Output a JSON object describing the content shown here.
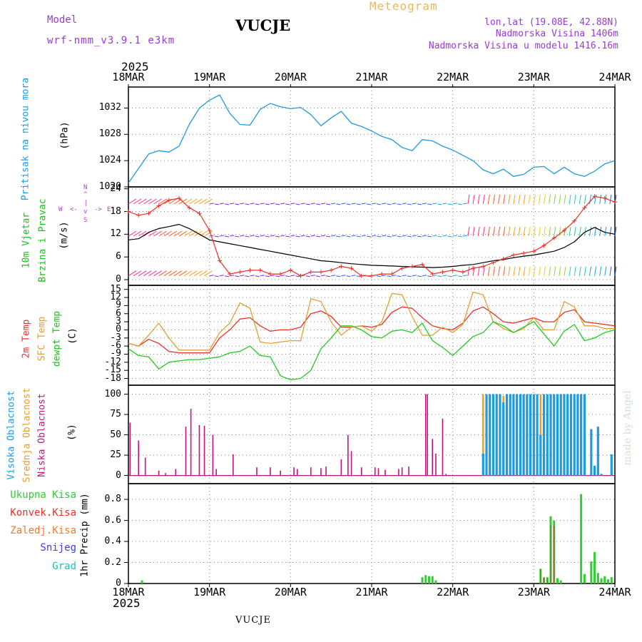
{
  "header": {
    "model_label": "Model",
    "model_name": "wrf-nmm_v3.9.1  e3km",
    "station": "VUCJE",
    "chart_name": "Meteogram",
    "coords": "lon,lat (19.08E, 42.88N)",
    "elevation": "Nadmorska Visina 1406m",
    "model_elevation": "Nadmorska Visina u modelu 1416.16m",
    "footer_station": "VUCJE",
    "credit": "made by Angel"
  },
  "colors": {
    "pressure": "#1e9be0",
    "temp2m": "#e8322a",
    "sfc_temp": "#e0a030",
    "dewpt": "#22cc22",
    "high_cloud": "#1e9be0",
    "mid_cloud": "#e0a030",
    "low_cloud": "#c0157f",
    "total_precip": "#33cc33",
    "model": "#9a3bd6",
    "title_orange": "#e8b860"
  },
  "chart_data": [
    {
      "type": "line",
      "id": "pressure",
      "title": "Pritisak na nivou mora",
      "ylabel": "(hPa)",
      "year": "2025",
      "x_ticks": [
        "18MAR",
        "19MAR",
        "20MAR",
        "21MAR",
        "22MAR",
        "23MAR",
        "24MAR"
      ],
      "ylim": [
        1020,
        1035.2
      ],
      "y_ticks": [
        1020,
        1024,
        1028,
        1032
      ],
      "y_tick_labels": [
        "1020",
        "1024",
        "1028",
        "1032"
      ],
      "x_hours": [
        0,
        3,
        6,
        9,
        12,
        15,
        18,
        21,
        24,
        27,
        30,
        33,
        36,
        39,
        42,
        45,
        48,
        51,
        54,
        57,
        60,
        63,
        66,
        69,
        72,
        75,
        78,
        81,
        84,
        87,
        90,
        93,
        96,
        99,
        102,
        105,
        108,
        111,
        114,
        117,
        120,
        123,
        126,
        129,
        132,
        135,
        138,
        141,
        144
      ],
      "values": [
        1020.6,
        1022.8,
        1025.0,
        1025.5,
        1025.3,
        1026.2,
        1029.5,
        1032.0,
        1033.2,
        1034.0,
        1031.2,
        1029.5,
        1029.4,
        1031.8,
        1032.7,
        1032.2,
        1031.9,
        1032.1,
        1031.0,
        1029.3,
        1030.5,
        1031.5,
        1029.7,
        1029.2,
        1028.5,
        1027.7,
        1027.2,
        1026.0,
        1025.5,
        1027.2,
        1027.0,
        1026.2,
        1025.6,
        1024.8,
        1024.0,
        1022.6,
        1022.0,
        1022.7,
        1021.6,
        1021.9,
        1023.0,
        1023.1,
        1022.0,
        1023.0,
        1022.0,
        1021.6,
        1022.4,
        1023.5,
        1024.0
      ]
    },
    {
      "type": "line",
      "id": "wind",
      "title_1": "10m Vjetar",
      "title_2": "Brzina i Pravac",
      "ylabel": "(m/s)",
      "compass": [
        "N",
        "^",
        "|",
        "v",
        "S",
        "W",
        "E",
        "<-",
        "->"
      ],
      "ylim": [
        -1.5,
        24.5
      ],
      "y_ticks": [
        0,
        6,
        12,
        18,
        24
      ],
      "y_tick_labels": [
        "0",
        "6",
        "12",
        "18",
        "24"
      ],
      "series": [
        {
          "name": "wind speed",
          "x_hours": [
            0,
            3,
            6,
            9,
            12,
            15,
            18,
            21,
            24,
            27,
            30,
            33,
            36,
            39,
            42,
            45,
            48,
            51,
            54,
            57,
            60,
            63,
            66,
            69,
            72,
            75,
            78,
            81,
            84,
            87,
            90,
            93,
            96,
            99,
            102,
            105,
            108,
            111,
            114,
            117,
            120,
            123,
            126,
            129,
            132,
            135,
            138,
            141,
            144
          ],
          "values": [
            10.5,
            10.8,
            12.5,
            13.5,
            14.0,
            14.6,
            13.5,
            12.0,
            10.5,
            10.0,
            9.5,
            9.0,
            8.5,
            8.0,
            7.5,
            7.0,
            6.5,
            6.0,
            5.5,
            5.0,
            4.8,
            4.5,
            4.2,
            4.0,
            3.8,
            3.7,
            3.6,
            3.5,
            3.4,
            3.3,
            3.2,
            3.3,
            3.5,
            3.8,
            4.0,
            4.5,
            5.0,
            5.3,
            5.8,
            6.2,
            6.5,
            7.0,
            7.5,
            8.5,
            10.0,
            12.5,
            13.8,
            12.5,
            12.0
          ]
        },
        {
          "name": "wind gust",
          "x_hours": [
            0,
            3,
            6,
            9,
            12,
            15,
            18,
            21,
            24,
            27,
            30,
            33,
            36,
            39,
            42,
            45,
            48,
            51,
            54,
            57,
            60,
            63,
            66,
            69,
            72,
            75,
            78,
            81,
            84,
            87,
            90,
            93,
            96,
            99,
            102,
            105,
            108,
            111,
            114,
            117,
            120,
            123,
            126,
            129,
            132,
            135,
            138,
            141,
            144
          ],
          "values": [
            18.0,
            17.0,
            17.5,
            19.5,
            21.0,
            21.5,
            19.0,
            17.5,
            13.0,
            5.0,
            1.5,
            2.0,
            2.5,
            2.5,
            1.5,
            1.5,
            2.5,
            1.0,
            2.0,
            2.0,
            2.5,
            3.5,
            3.0,
            1.0,
            1.0,
            1.5,
            1.5,
            3.0,
            3.5,
            4.0,
            1.5,
            2.0,
            2.5,
            2.0,
            3.0,
            3.5,
            4.5,
            5.5,
            6.5,
            7.0,
            7.5,
            9.0,
            11.0,
            13.0,
            15.5,
            19.0,
            22.0,
            21.5,
            20.5
          ]
        }
      ]
    },
    {
      "type": "line",
      "id": "temperature",
      "title_2m": "2m Temp",
      "title_sfc": "SFC Temp",
      "title_dew": "dewpt Temp",
      "ylabel": "(C)",
      "ylim": [
        -20.5,
        16.5
      ],
      "y_ticks": [
        15,
        12,
        9,
        6,
        3,
        0,
        -3,
        -6,
        -9,
        -12,
        -15,
        -18
      ],
      "y_tick_labels": [
        "15",
        "12",
        "9",
        "6",
        "3",
        "0",
        "-3",
        "-6",
        "-9",
        "-12",
        "-15",
        "-18"
      ],
      "series": [
        {
          "name": "2m Temp",
          "x_hours": [
            0,
            3,
            6,
            9,
            12,
            15,
            18,
            21,
            24,
            27,
            30,
            33,
            36,
            39,
            42,
            45,
            48,
            51,
            54,
            57,
            60,
            63,
            66,
            69,
            72,
            75,
            78,
            81,
            84,
            87,
            90,
            93,
            96,
            99,
            102,
            105,
            108,
            111,
            114,
            117,
            120,
            123,
            126,
            129,
            132,
            135,
            138,
            141,
            144
          ],
          "values": [
            -5.0,
            -6.0,
            -3.5,
            -5.0,
            -8.0,
            -8.5,
            -8.5,
            -8.5,
            -8.5,
            -3.0,
            0.0,
            4.0,
            4.5,
            1.5,
            -0.5,
            0.0,
            0.0,
            1.0,
            6.0,
            7.0,
            5.0,
            1.0,
            1.0,
            1.5,
            1.0,
            2.0,
            6.5,
            8.5,
            8.0,
            4.5,
            1.5,
            0.5,
            0.0,
            2.5,
            7.0,
            8.5,
            6.0,
            3.0,
            2.5,
            3.5,
            4.5,
            3.0,
            3.0,
            6.5,
            7.5,
            3.0,
            2.5,
            2.0,
            1.5
          ]
        },
        {
          "name": "SFC Temp",
          "x_hours": [
            0,
            3,
            6,
            9,
            12,
            15,
            18,
            21,
            24,
            27,
            30,
            33,
            36,
            39,
            42,
            45,
            48,
            51,
            54,
            57,
            60,
            63,
            66,
            69,
            72,
            75,
            78,
            81,
            84,
            87,
            90,
            93,
            96,
            99,
            102,
            105,
            108,
            111,
            114,
            117,
            120,
            123,
            126,
            129,
            132,
            135,
            138,
            141,
            144
          ],
          "values": [
            -5.0,
            -6.0,
            -2.0,
            2.5,
            -3.0,
            -7.5,
            -7.5,
            -7.5,
            -7.5,
            -1.0,
            2.5,
            10.0,
            8.0,
            -4.5,
            -5.0,
            -4.5,
            -4.0,
            -4.0,
            11.5,
            10.5,
            3.0,
            -2.0,
            1.0,
            1.5,
            -0.5,
            3.0,
            13.5,
            13.0,
            5.0,
            -2.0,
            -2.0,
            1.0,
            -1.0,
            2.0,
            14.0,
            13.0,
            3.0,
            0.5,
            -1.0,
            0.5,
            4.5,
            0.0,
            0.0,
            10.5,
            8.5,
            1.5,
            1.5,
            0.5,
            0.5
          ]
        },
        {
          "name": "dewpt Temp",
          "x_hours": [
            0,
            3,
            6,
            9,
            12,
            15,
            18,
            21,
            24,
            27,
            30,
            33,
            36,
            39,
            42,
            45,
            48,
            51,
            54,
            57,
            60,
            63,
            66,
            69,
            72,
            75,
            78,
            81,
            84,
            87,
            90,
            93,
            96,
            99,
            102,
            105,
            108,
            111,
            114,
            117,
            120,
            123,
            126,
            129,
            132,
            135,
            138,
            141,
            144
          ],
          "values": [
            -7.0,
            -9.5,
            -10.0,
            -14.5,
            -12.0,
            -11.5,
            -11.0,
            -11.0,
            -10.5,
            -10.0,
            -8.5,
            -8.0,
            -6.0,
            -9.5,
            -10.0,
            -17.0,
            -18.5,
            -18.0,
            -15.0,
            -7.0,
            -3.0,
            1.5,
            1.5,
            0.0,
            -2.5,
            -3.0,
            -0.5,
            0.0,
            -1.0,
            2.5,
            -4.0,
            -6.5,
            -9.5,
            -6.0,
            -2.5,
            -1.0,
            3.0,
            1.5,
            -1.0,
            1.0,
            3.0,
            -1.5,
            -6.0,
            -0.5,
            2.0,
            -4.0,
            -3.0,
            -1.0,
            0.0
          ]
        }
      ]
    },
    {
      "type": "bar",
      "id": "cloud",
      "title_high": "Visoka Oblacnost",
      "title_mid": "Srednja Oblacnost",
      "title_low": "Niska Oblacnost",
      "ylabel": "(%)",
      "ylim": [
        -10,
        111
      ],
      "y_ticks": [
        0,
        25,
        50,
        75,
        100
      ],
      "y_tick_labels": [
        "0",
        "25",
        "50",
        "75",
        "100"
      ],
      "series": [
        {
          "name": "Niska Oblacnost",
          "x_hours": [
            0.5,
            3,
            5,
            9,
            11,
            14,
            17,
            18.5,
            21,
            22.5,
            25,
            26,
            31,
            38,
            42,
            45,
            49,
            50,
            54,
            57,
            58.5,
            63,
            65,
            66,
            69,
            73,
            74,
            76,
            80,
            81,
            83,
            88,
            88.5,
            90,
            91,
            93,
            94
          ],
          "values": [
            65,
            43,
            22,
            6,
            3,
            8,
            60,
            82,
            62,
            61,
            50,
            8,
            26,
            10,
            10,
            6,
            10,
            8,
            10,
            9,
            11,
            20,
            50,
            30,
            10,
            10,
            9,
            7,
            8,
            10,
            11,
            100,
            100,
            45,
            27,
            70,
            2
          ]
        },
        {
          "name": "Srednja Oblacnost",
          "x_hours": [
            105,
            106,
            107,
            108,
            109,
            110,
            111,
            112,
            113,
            114,
            115,
            116,
            117,
            118,
            119,
            120,
            121,
            122,
            123,
            124,
            125,
            126,
            127,
            128,
            129,
            130,
            131,
            132,
            133,
            134,
            135
          ],
          "values": [
            100,
            100,
            100,
            100,
            100,
            100,
            98,
            100,
            100,
            100,
            100,
            100,
            100,
            100,
            100,
            100,
            100,
            100,
            100,
            100,
            100,
            100,
            100,
            100,
            100,
            100,
            100,
            100,
            100,
            100,
            100
          ]
        },
        {
          "name": "Visoka Oblacnost",
          "x_hours": [
            105,
            106,
            107,
            108,
            109,
            110,
            111,
            112,
            113,
            114,
            115,
            116,
            117,
            118,
            119,
            120,
            121,
            122,
            123,
            124,
            125,
            126,
            127,
            128,
            129,
            130,
            131,
            132,
            133,
            134,
            135,
            137,
            138,
            139,
            140,
            143
          ],
          "values": [
            27,
            100,
            100,
            100,
            100,
            100,
            90,
            100,
            100,
            100,
            100,
            100,
            100,
            100,
            100,
            100,
            100,
            50,
            100,
            100,
            100,
            100,
            100,
            100,
            100,
            100,
            100,
            100,
            100,
            100,
            100,
            57,
            12,
            60,
            2,
            26
          ]
        }
      ]
    },
    {
      "type": "bar",
      "id": "precip",
      "title_total": "Ukupna Kisa",
      "title_conv": "Konvek.Kisa",
      "title_froz": "Zaledj.Kisa",
      "title_snow": "Snijeg",
      "title_hail": "Grad",
      "ylabel": "1hr Precip (mm)",
      "year": "2025",
      "x_ticks": [
        "18MAR",
        "19MAR",
        "20MAR",
        "21MAR",
        "22MAR",
        "23MAR",
        "24MAR"
      ],
      "footer": "VUCJE",
      "ylim": [
        0,
        0.95
      ],
      "y_ticks": [
        0,
        0.2,
        0.4,
        0.6,
        0.8
      ],
      "y_tick_labels": [
        "0",
        "0.2",
        "0.4",
        "0.6",
        "0.8"
      ],
      "series": [
        {
          "name": "Ukupna Kisa",
          "x_hours": [
            4,
            87,
            88,
            89,
            90,
            91,
            122,
            123,
            124,
            125,
            126,
            127,
            128,
            134,
            135,
            137,
            138,
            139,
            140,
            141,
            142,
            143
          ],
          "values": [
            0.03,
            0.06,
            0.08,
            0.07,
            0.07,
            0.03,
            0.14,
            0.06,
            0.06,
            0.64,
            0.6,
            0.05,
            0.03,
            0.85,
            0.09,
            0.21,
            0.3,
            0.1,
            0.05,
            0.07,
            0.04,
            0.06
          ]
        },
        {
          "name": "Konvek.Kisa",
          "x_hours": [
            122,
            123,
            124,
            125,
            126,
            135
          ],
          "values": [
            0.14,
            0.05,
            0.05,
            0.55,
            0.55,
            0.02
          ]
        }
      ]
    }
  ]
}
